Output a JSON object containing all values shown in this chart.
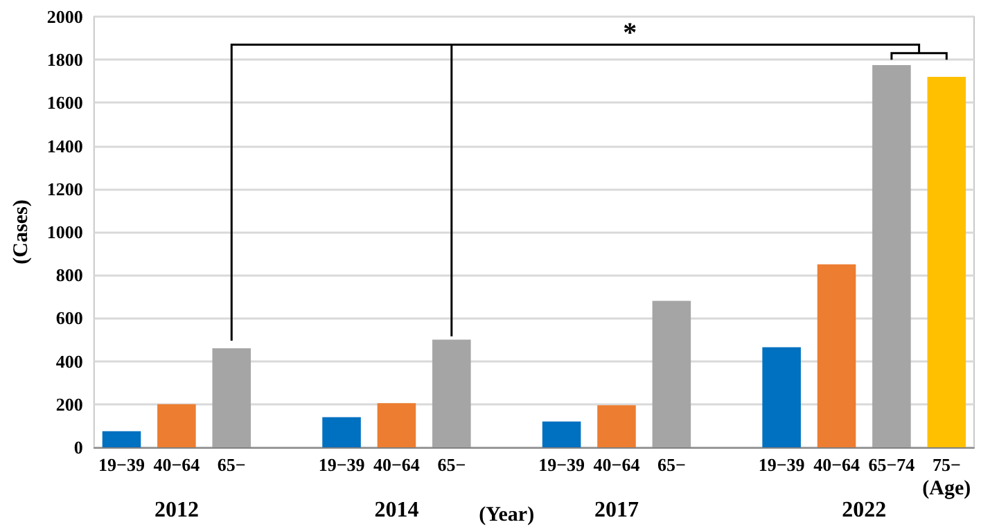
{
  "chart_data": {
    "type": "bar",
    "ylabel": "(Cases)",
    "xlabel": "(Year)",
    "categories": [
      "19−39",
      "40−64",
      "65−",
      null,
      "19−39",
      "40−64",
      "65−",
      null,
      "19−39",
      "40−64",
      "65−",
      null,
      "19−39",
      "40−64",
      "65−74",
      "75−"
    ],
    "values": [
      75,
      200,
      460,
      null,
      140,
      205,
      500,
      null,
      120,
      195,
      680,
      null,
      465,
      850,
      1775,
      1720
    ],
    "colors": [
      "#0070c0",
      "#ed7d31",
      "#a5a5a5",
      null,
      "#0070c0",
      "#ed7d31",
      "#a5a5a5",
      null,
      "#0070c0",
      "#ed7d31",
      "#a5a5a5",
      null,
      "#0070c0",
      "#ed7d31",
      "#a5a5a5",
      "#ffc000"
    ],
    "ylim": [
      0,
      2000
    ],
    "yticks": [
      0,
      200,
      400,
      600,
      800,
      1000,
      1200,
      1400,
      1600,
      1800,
      2000
    ],
    "grid": "y",
    "annotations": [
      "2012",
      "2014",
      "2017",
      "2022",
      "(Age)",
      "*"
    ]
  }
}
